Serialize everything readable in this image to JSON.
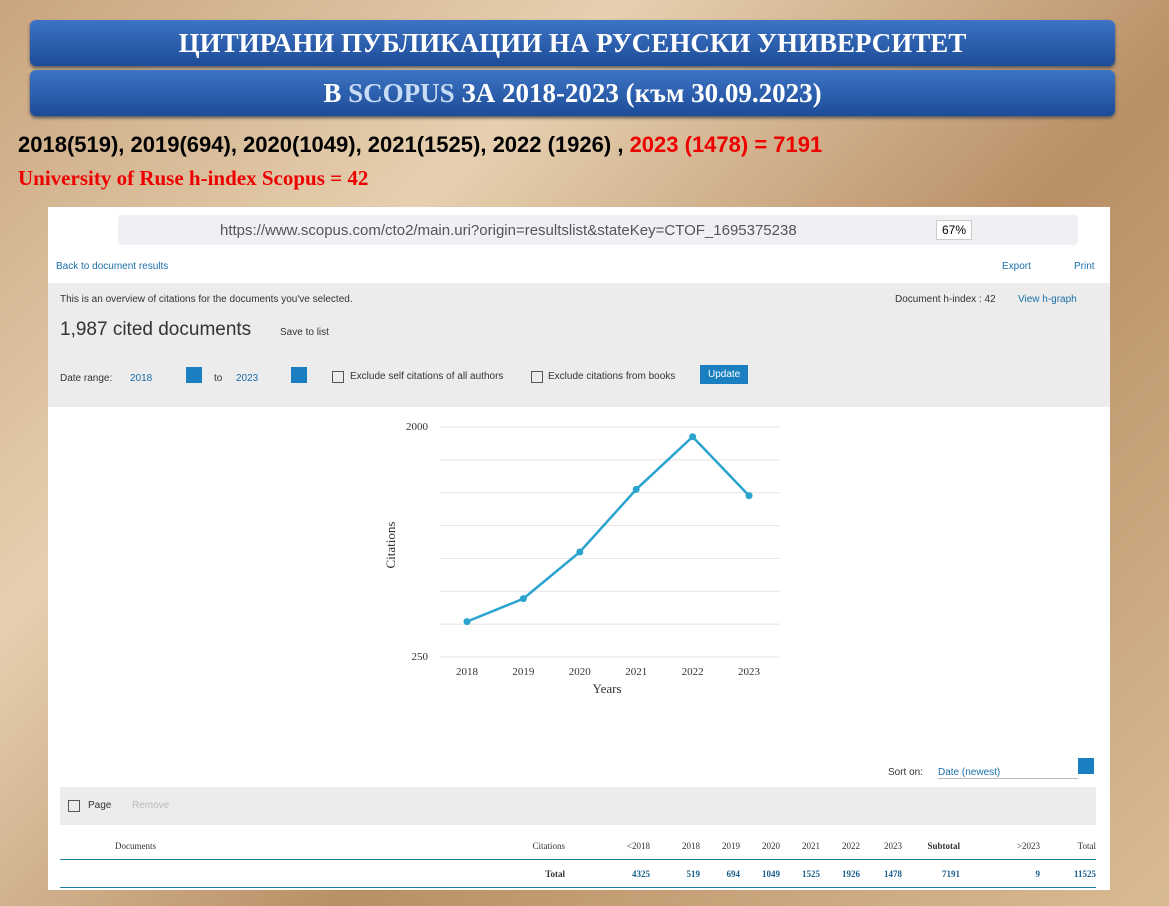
{
  "slide": {
    "title_1": "ЦИТИРАНИ ПУБЛИКАЦИИ НА  РУСЕНСКИ УНИВЕРСИТЕТ",
    "title_2": {
      "pre": "В ",
      "brand": "SCOPUS",
      "post": " ЗА 2018-2023 (към 30.09.2023)"
    },
    "summary": {
      "text": "2018(519), 2019(694), 2020(1049), 2021(1525), 2022 (1926) , ",
      "highlight": "2023 (1478) = 7191"
    },
    "hindex_line": "University of Ruse h-index Scopus = 42"
  },
  "browser": {
    "url": "https://www.scopus.com/cto2/main.uri?origin=resultslist&stateKey=CTOF_1695375238",
    "zoom": "67%"
  },
  "page": {
    "back": "Back to document results",
    "export": "Export",
    "print": "Print",
    "overview": "This is an overview of citations for the documents you've selected.",
    "doc_hindex": "Document h-index : 42",
    "view_hgraph": "View h-graph",
    "cited": "1,987 cited documents",
    "save": "Save to list",
    "date_range": "Date range:",
    "from": "2018",
    "to": "to",
    "until": "2023",
    "exclude_self": "Exclude self citations of all authors",
    "exclude_books": "Exclude citations from books",
    "update": "Update",
    "sort_on": "Sort on:",
    "sort_value": "Date (newest)",
    "page_cb": "Page",
    "remove": "Remove"
  },
  "chart_data": {
    "type": "line",
    "x_label": "Years",
    "y_label": "Citations",
    "categories": [
      "2018",
      "2019",
      "2020",
      "2021",
      "2022",
      "2023"
    ],
    "series": [
      {
        "name": "Citations",
        "color": "#2aa3cf",
        "values": [
          519,
          694,
          1049,
          1525,
          1926,
          1478
        ]
      }
    ],
    "ylim": [
      250,
      2000
    ],
    "yticks": [
      250,
      2000
    ],
    "minor_yticks": [
      500,
      750,
      1000,
      1250,
      1500,
      1750
    ],
    "grid": true
  },
  "table": {
    "headers": [
      "Documents",
      "Citations",
      "<2018",
      "2018",
      "2019",
      "2020",
      "2021",
      "2022",
      "2023",
      "Subtotal",
      ">2023",
      "Total"
    ],
    "total_row": [
      "Total",
      4325,
      519,
      694,
      1049,
      1525,
      1926,
      1478,
      7191,
      9,
      11525
    ]
  }
}
